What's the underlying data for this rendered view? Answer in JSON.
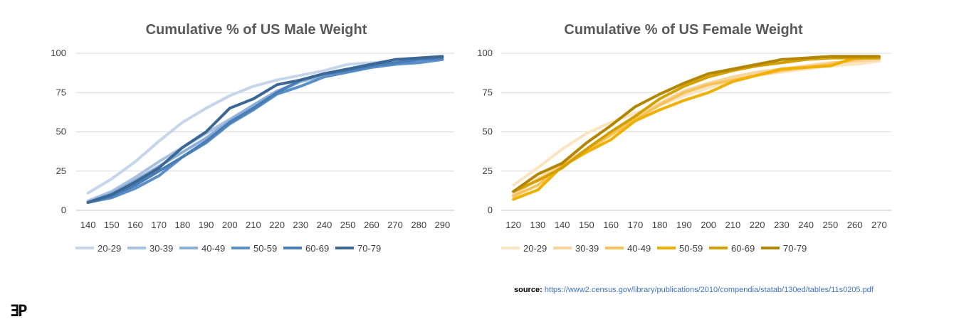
{
  "chart_data": [
    {
      "type": "line",
      "title": "Cumulative % of US Male Weight",
      "xlabel": "",
      "ylabel": "",
      "x": [
        140,
        150,
        160,
        170,
        180,
        190,
        200,
        210,
        220,
        230,
        240,
        250,
        260,
        270,
        280,
        290
      ],
      "y_ticks": [
        0,
        25,
        50,
        75,
        100
      ],
      "ylim": [
        0,
        100
      ],
      "grid": true,
      "legend_position": "bottom",
      "series": [
        {
          "name": "20-29",
          "color": "#C5D5EA",
          "values": [
            11,
            20,
            31,
            44,
            56,
            65,
            73,
            79,
            83,
            86,
            89,
            93,
            94,
            95,
            96,
            97
          ]
        },
        {
          "name": "30-39",
          "color": "#A9C1E0",
          "values": [
            6,
            12,
            21,
            31,
            40,
            49,
            58,
            67,
            75,
            82,
            87,
            90,
            92,
            94,
            95,
            96
          ]
        },
        {
          "name": "40-49",
          "color": "#8CAFD9",
          "values": [
            5,
            11,
            19,
            28,
            37,
            46,
            57,
            67,
            76,
            82,
            86,
            89,
            92,
            94,
            95,
            97
          ]
        },
        {
          "name": "50-59",
          "color": "#5B8FC7",
          "values": [
            5,
            8,
            14,
            22,
            34,
            43,
            55,
            64,
            74,
            79,
            85,
            88,
            91,
            93,
            94,
            96
          ]
        },
        {
          "name": "60-69",
          "color": "#4A7DB5",
          "values": [
            5,
            9,
            16,
            25,
            34,
            44,
            56,
            65,
            75,
            83,
            87,
            89,
            92,
            94,
            96,
            97
          ]
        },
        {
          "name": "70-79",
          "color": "#3B6794",
          "values": [
            5,
            10,
            18,
            27,
            40,
            50,
            65,
            71,
            80,
            83,
            87,
            90,
            93,
            96,
            97,
            98
          ]
        }
      ]
    },
    {
      "type": "line",
      "title": "Cumulative % of US Female Weight",
      "xlabel": "",
      "ylabel": "",
      "x": [
        120,
        130,
        140,
        150,
        160,
        170,
        180,
        190,
        200,
        210,
        220,
        230,
        240,
        250,
        260,
        270
      ],
      "y_ticks": [
        0,
        25,
        50,
        75,
        100
      ],
      "ylim": [
        0,
        100
      ],
      "grid": true,
      "legend_position": "bottom",
      "series": [
        {
          "name": "20-29",
          "color": "#FCE4C0",
          "values": [
            16,
            27,
            39,
            49,
            56,
            62,
            67,
            73,
            78,
            83,
            86,
            88,
            90,
            92,
            93,
            95
          ]
        },
        {
          "name": "30-39",
          "color": "#FAD49A",
          "values": [
            10,
            20,
            29,
            39,
            48,
            58,
            68,
            76,
            81,
            85,
            88,
            90,
            92,
            94,
            95,
            96
          ]
        },
        {
          "name": "40-49",
          "color": "#F6C25B",
          "values": [
            9,
            16,
            28,
            38,
            48,
            58,
            67,
            75,
            80,
            83,
            86,
            89,
            91,
            93,
            96,
            98
          ]
        },
        {
          "name": "50-59",
          "color": "#F0B000",
          "values": [
            7,
            13,
            28,
            37,
            45,
            57,
            64,
            70,
            75,
            82,
            86,
            90,
            91,
            92,
            97,
            97
          ]
        },
        {
          "name": "60-69",
          "color": "#D4A000",
          "values": [
            12,
            19,
            27,
            39,
            50,
            60,
            71,
            79,
            85,
            89,
            92,
            94,
            96,
            97,
            97,
            97
          ]
        },
        {
          "name": "70-79",
          "color": "#B38600",
          "values": [
            12,
            23,
            30,
            43,
            54,
            66,
            74,
            81,
            87,
            90,
            93,
            96,
            97,
            98,
            98,
            98
          ]
        }
      ]
    }
  ],
  "source": {
    "label": "source:",
    "url": "https://www2.census.gov/library/publications/2010/compendia/statab/130ed/tables/11s0205.pdf"
  },
  "branding": {
    "logo_text": "ƎP"
  }
}
